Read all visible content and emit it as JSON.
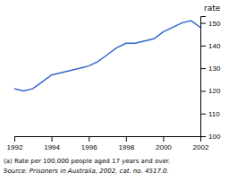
{
  "chart_data": {
    "type": "line",
    "x": [
      1992,
      1992.5,
      1993,
      1993.5,
      1994,
      1994.5,
      1995,
      1995.5,
      1996,
      1996.5,
      1997,
      1997.5,
      1998,
      1998.5,
      1999,
      1999.5,
      2000,
      2000.5,
      2001,
      2001.5,
      2002
    ],
    "values": [
      121,
      120,
      121,
      124,
      127,
      128,
      129,
      130,
      131,
      133,
      136,
      139,
      141,
      141,
      142,
      143,
      146,
      148,
      150,
      151,
      148
    ],
    "color": "#3366cc",
    "xlim": [
      1992,
      2002
    ],
    "ylim": [
      100,
      153
    ],
    "xticks": [
      1992,
      1994,
      1996,
      1998,
      2000,
      2002
    ],
    "yticks": [
      100,
      110,
      120,
      130,
      140,
      150
    ],
    "ylabel": "rate",
    "annotations": [
      "(a) Rate per 100,000 people aged 17 years and over.",
      "Source: Prisoners in Australia, 2002, cat. no. 4517.0."
    ],
    "grid": false
  }
}
